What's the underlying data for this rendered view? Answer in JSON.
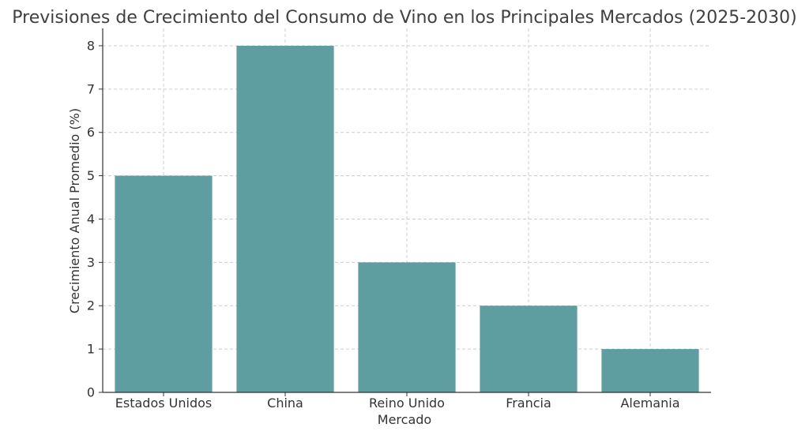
{
  "chart_data": {
    "type": "bar",
    "title": "Previsiones de Crecimiento del Consumo de Vino en los Principales Mercados (2025-2030)",
    "xlabel": "Mercado",
    "ylabel": "Crecimiento Anual Promedio (%)",
    "categories": [
      "Estados Unidos",
      "China",
      "Reino Unido",
      "Francia",
      "Alemania"
    ],
    "values": [
      5,
      8,
      3,
      2,
      1
    ],
    "ylim": [
      0,
      8.4
    ],
    "yticks": [
      "0",
      "1",
      "2",
      "3",
      "4",
      "5",
      "6",
      "7",
      "8"
    ],
    "grid": true,
    "colors": {
      "bar": "#5f9ea0",
      "grid": "#cccccc",
      "axis": "#333333"
    }
  }
}
